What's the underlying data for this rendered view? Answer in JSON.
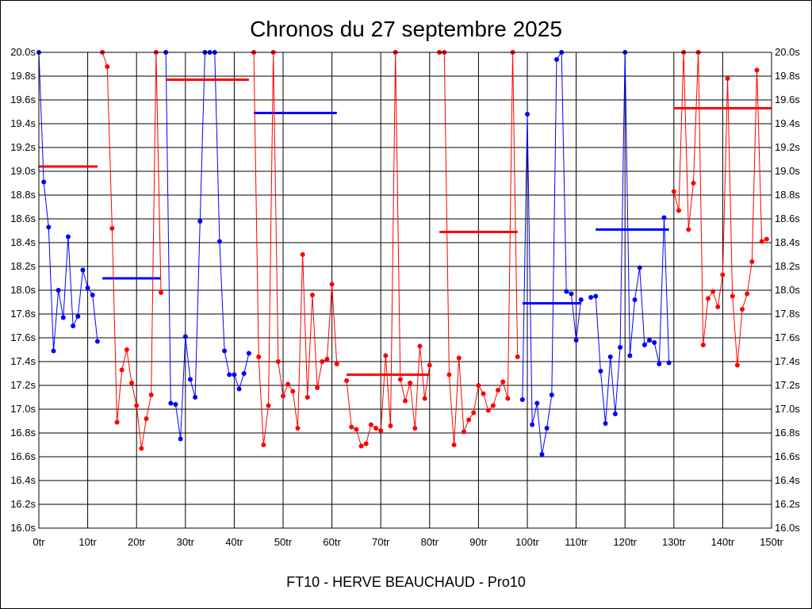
{
  "chart_data": {
    "type": "line",
    "title": "Chronos du 27 septembre 2025",
    "subtitle": "FT10 - HERVE BEAUCHAUD - Pro10",
    "xlim": [
      0,
      150
    ],
    "ylim": [
      16.0,
      20.0
    ],
    "grid": true,
    "x_ticks": [
      "0tr",
      "10tr",
      "20tr",
      "30tr",
      "40tr",
      "50tr",
      "60tr",
      "70tr",
      "80tr",
      "90tr",
      "100tr",
      "110tr",
      "120tr",
      "130tr",
      "140tr",
      "150tr"
    ],
    "y_ticks": [
      "20.0s",
      "19.8s",
      "19.6s",
      "19.4s",
      "19.2s",
      "19.0s",
      "18.8s",
      "18.6s",
      "18.4s",
      "18.2s",
      "18.0s",
      "17.8s",
      "17.6s",
      "17.4s",
      "17.2s",
      "17.0s",
      "16.8s",
      "16.6s",
      "16.4s",
      "16.2s",
      "16.0s"
    ],
    "colors": {
      "blue": "#0000ff",
      "red": "#ff0000"
    },
    "series": [
      {
        "color": "blue",
        "x_start": 0,
        "values": [
          20.0,
          18.91,
          18.53,
          17.49,
          18.0,
          17.77,
          18.45,
          17.7,
          17.78,
          18.17,
          18.02,
          17.96,
          17.57
        ],
        "mean": 18.1,
        "mean_range": [
          13,
          25
        ]
      },
      {
        "color": "red",
        "x_start": 13,
        "values": [
          20.0,
          19.88,
          18.52,
          16.89,
          17.33,
          17.5,
          17.22,
          17.03,
          16.67,
          16.92,
          17.12,
          20.0,
          17.98
        ],
        "mean": 19.04,
        "mean_range": [
          0,
          12
        ]
      },
      {
        "color": "blue",
        "x_start": 26,
        "values": [
          20.0,
          17.05,
          17.04,
          16.75,
          17.61,
          17.25,
          17.1,
          18.58,
          20.0,
          20.0,
          20.0,
          18.41,
          17.49,
          17.29,
          17.29,
          17.17,
          17.3,
          17.47
        ],
        "mean": 19.49,
        "mean_range": [
          44,
          61
        ]
      },
      {
        "color": "red",
        "x_start": 44,
        "values": [
          20.0,
          17.44,
          16.7,
          17.03,
          20.0,
          17.4,
          17.11,
          17.21,
          17.15,
          16.84,
          18.3,
          17.1,
          17.96,
          17.18,
          17.4,
          17.42,
          18.05,
          17.38
        ],
        "mean": 19.77,
        "mean_range": [
          26,
          43
        ]
      },
      {
        "color": "red",
        "x_start": 63,
        "values": [
          17.24,
          16.85,
          16.83,
          16.69,
          16.71,
          16.87,
          16.84,
          16.82,
          17.45,
          16.86,
          20.0,
          17.25,
          17.07,
          17.22,
          16.84,
          17.53,
          17.09,
          17.37
        ],
        "mean": 17.29,
        "mean_range": [
          63,
          80
        ]
      },
      {
        "color": "red",
        "x_start": 82,
        "values": [
          20.0,
          20.0,
          17.29,
          16.7,
          17.43,
          16.81,
          16.91,
          16.97,
          17.2,
          17.13,
          16.99,
          17.03,
          17.16,
          17.23,
          17.09,
          20.0,
          17.44
        ],
        "mean": 18.49,
        "mean_range": [
          82,
          98
        ]
      },
      {
        "color": "blue",
        "x_start": 99,
        "values": [
          17.08,
          19.48,
          16.87,
          17.05,
          16.62,
          16.84,
          17.12,
          19.94,
          20.0,
          17.99,
          17.97,
          17.58,
          17.92
        ],
        "mean": 17.89,
        "mean_range": [
          99,
          111
        ]
      },
      {
        "color": "blue",
        "x_start": 113,
        "values": [
          17.94,
          17.95,
          17.32,
          16.88,
          17.44,
          16.96,
          17.52,
          20.0,
          17.45,
          17.92,
          18.19,
          17.54,
          17.58,
          17.56,
          17.38,
          18.61,
          17.39
        ],
        "mean": 18.51,
        "mean_range": [
          114,
          129
        ]
      },
      {
        "color": "red",
        "x_start": 130,
        "values": [
          18.83,
          18.67,
          20.0,
          18.51,
          18.9,
          20.0,
          17.54,
          17.93,
          17.99,
          17.86,
          18.13,
          19.78,
          17.95,
          17.37,
          17.84,
          17.97,
          18.24,
          19.85,
          18.41,
          18.43
        ],
        "mean": 19.53,
        "mean_range": [
          130,
          150
        ]
      }
    ]
  }
}
